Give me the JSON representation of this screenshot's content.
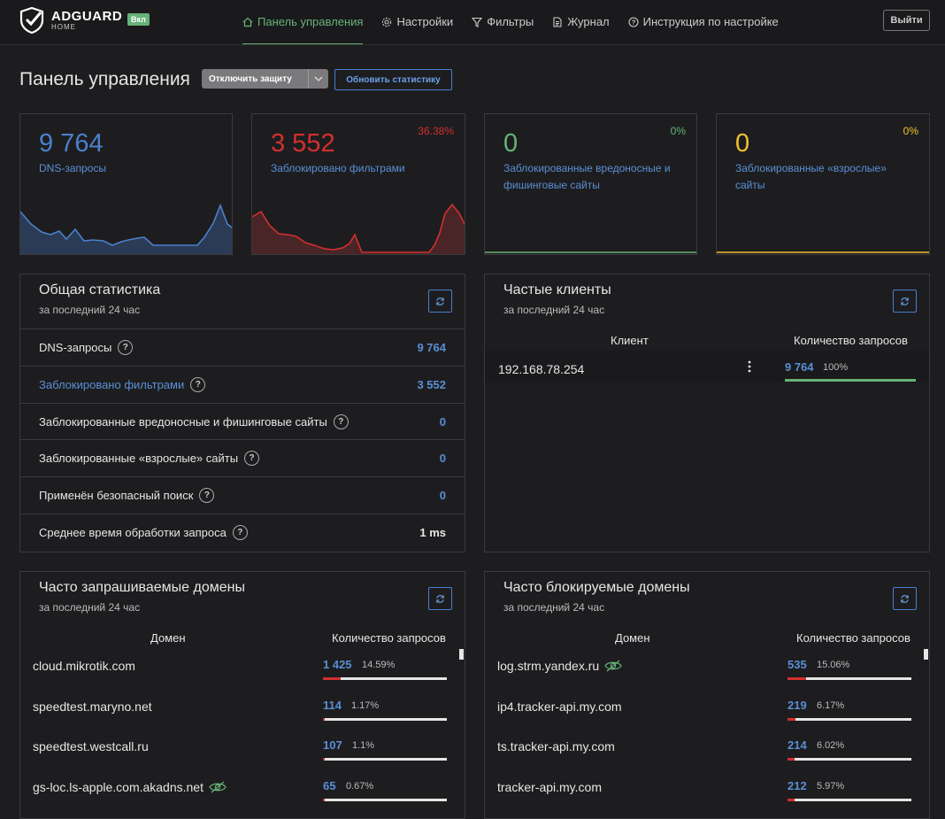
{
  "header": {
    "brand": "ADGUARD",
    "brand_sub": "HOME",
    "status_badge": "Вкл",
    "nav": [
      {
        "label": "Панель управления",
        "icon": "home-icon"
      },
      {
        "label": "Настройки",
        "icon": "gear-icon"
      },
      {
        "label": "Фильтры",
        "icon": "filter-icon"
      },
      {
        "label": "Журнал",
        "icon": "document-icon"
      },
      {
        "label": "Инструкция по настройке",
        "icon": "help-icon"
      }
    ],
    "logout_label": "Выйти"
  },
  "page": {
    "title": "Панель управления",
    "disable_button": "Отключить защиту",
    "refresh_button": "Обновить статистику"
  },
  "stats": [
    {
      "value": "9 764",
      "label": "DNS-запросы",
      "percent": "",
      "color": "#4a80cc"
    },
    {
      "value": "3 552",
      "label": "Заблокировано фильтрами",
      "percent": "36.38%",
      "color": "#d32f2f"
    },
    {
      "value": "0",
      "label": "Заблокированные вредоносные и фишинговые сайты",
      "percent": "0%",
      "color": "#67b279"
    },
    {
      "value": "0",
      "label": "Заблокированные «взрослые» сайты",
      "percent": "0%",
      "color": "#f0c02e"
    }
  ],
  "general": {
    "title": "Общая статистика",
    "subtitle": "за последний 24 час",
    "rows": [
      {
        "label": "DNS-запросы",
        "value": "9 764"
      },
      {
        "label": "Заблокировано фильтрами",
        "value": "3 552"
      },
      {
        "label": "Заблокированные вредоносные и фишинговые сайты",
        "value": "0"
      },
      {
        "label": "Заблокированные «взрослые» сайты",
        "value": "0"
      },
      {
        "label": "Применён безопасный поиск",
        "value": "0"
      },
      {
        "label": "Среднее время обработки запроса",
        "value": "1 ms"
      }
    ]
  },
  "clients": {
    "title": "Частые клиенты",
    "subtitle": "за последний 24 час",
    "col_client": "Клиент",
    "col_count": "Количество запросов",
    "rows": [
      {
        "client": "192.168.78.254",
        "count": "9 764",
        "percent": "100%",
        "share": 1.0
      }
    ]
  },
  "queried": {
    "title": "Часто запрашиваемые домены",
    "subtitle": "за последний 24 час",
    "col_domain": "Домен",
    "col_count": "Количество запросов",
    "rows": [
      {
        "domain": "cloud.mikrotik.com",
        "count": "1 425",
        "percent": "14.59%",
        "share": 0.1459,
        "hidden": false
      },
      {
        "domain": "speedtest.maryno.net",
        "count": "114",
        "percent": "1.17%",
        "share": 0.0117,
        "hidden": false
      },
      {
        "domain": "speedtest.westcall.ru",
        "count": "107",
        "percent": "1.1%",
        "share": 0.011,
        "hidden": false
      },
      {
        "domain": "gs-loc.ls-apple.com.akadns.net",
        "count": "65",
        "percent": "0.67%",
        "share": 0.0067,
        "hidden": true
      }
    ]
  },
  "blocked": {
    "title": "Часто блокируемые домены",
    "subtitle": "за последний 24 час",
    "col_domain": "Домен",
    "col_count": "Количество запросов",
    "rows": [
      {
        "domain": "log.strm.yandex.ru",
        "count": "535",
        "percent": "15.06%",
        "share": 0.1506,
        "hidden": true
      },
      {
        "domain": "ip4.tracker-api.my.com",
        "count": "219",
        "percent": "6.17%",
        "share": 0.0617,
        "hidden": false
      },
      {
        "domain": "ts.tracker-api.my.com",
        "count": "214",
        "percent": "6.02%",
        "share": 0.0602,
        "hidden": false
      },
      {
        "domain": "tracker-api.my.com",
        "count": "212",
        "percent": "5.97%",
        "share": 0.0597,
        "hidden": false
      }
    ]
  }
}
